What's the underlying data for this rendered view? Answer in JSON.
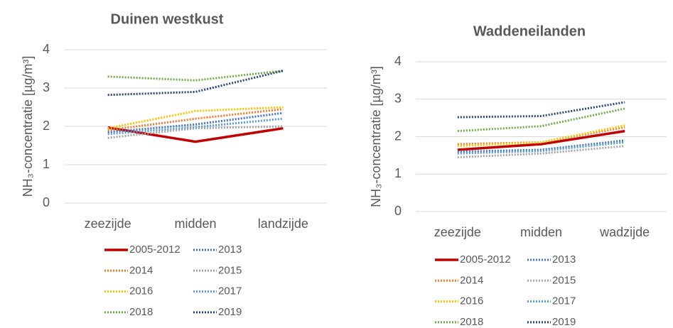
{
  "chart_data": [
    {
      "type": "line",
      "title": "Duinen westkust",
      "ylabel": "NH₃-concentratie [µg/m³]",
      "categories": [
        "zeezijde",
        "midden",
        "landzijde"
      ],
      "ylim": [
        0,
        4
      ],
      "yticks": [
        0,
        1,
        2,
        3,
        4
      ],
      "grid": true,
      "series": [
        {
          "name": "2005-2012",
          "color": "#c00000",
          "style": "solid",
          "values": [
            1.97,
            1.6,
            1.95
          ]
        },
        {
          "name": "2013",
          "color": "#4472c4",
          "style": "dotted",
          "values": [
            1.85,
            2.05,
            2.35
          ]
        },
        {
          "name": "2014",
          "color": "#ed7d31",
          "style": "dotted",
          "values": [
            1.9,
            2.2,
            2.45
          ]
        },
        {
          "name": "2015",
          "color": "#a5a5a5",
          "style": "dotted",
          "values": [
            1.7,
            1.95,
            2.0
          ]
        },
        {
          "name": "2016",
          "color": "#ffc000",
          "style": "dotted",
          "values": [
            1.95,
            2.4,
            2.5
          ]
        },
        {
          "name": "2017",
          "color": "#5b9bd5",
          "style": "dotted",
          "values": [
            1.8,
            1.98,
            2.2
          ]
        },
        {
          "name": "2018",
          "color": "#70ad47",
          "style": "dotted",
          "values": [
            3.3,
            3.2,
            3.45
          ]
        },
        {
          "name": "2019",
          "color": "#264478",
          "style": "dotted",
          "values": [
            2.82,
            2.9,
            3.45
          ]
        }
      ]
    },
    {
      "type": "line",
      "title": "Waddeneilanden",
      "ylabel": "NH₃-concentratie [µg/m³]",
      "categories": [
        "zeezijde",
        "midden",
        "wadzijde"
      ],
      "ylim": [
        0,
        4
      ],
      "yticks": [
        0,
        1,
        2,
        3,
        4
      ],
      "grid": true,
      "series": [
        {
          "name": "2005-2012",
          "color": "#c00000",
          "style": "solid",
          "values": [
            1.65,
            1.8,
            2.15
          ]
        },
        {
          "name": "2013",
          "color": "#4472c4",
          "style": "dotted",
          "values": [
            1.6,
            1.65,
            1.9
          ]
        },
        {
          "name": "2014",
          "color": "#ed7d31",
          "style": "dotted",
          "values": [
            1.8,
            1.85,
            2.25
          ]
        },
        {
          "name": "2015",
          "color": "#a5a5a5",
          "style": "dotted",
          "values": [
            1.45,
            1.55,
            1.75
          ]
        },
        {
          "name": "2016",
          "color": "#ffc000",
          "style": "dotted",
          "values": [
            1.75,
            1.85,
            2.3
          ]
        },
        {
          "name": "2017",
          "color": "#5b9bd5",
          "style": "dotted",
          "values": [
            1.55,
            1.62,
            1.85
          ]
        },
        {
          "name": "2018",
          "color": "#70ad47",
          "style": "dotted",
          "values": [
            2.15,
            2.28,
            2.75
          ]
        },
        {
          "name": "2019",
          "color": "#264478",
          "style": "dotted",
          "values": [
            2.52,
            2.55,
            2.92
          ]
        }
      ]
    }
  ]
}
